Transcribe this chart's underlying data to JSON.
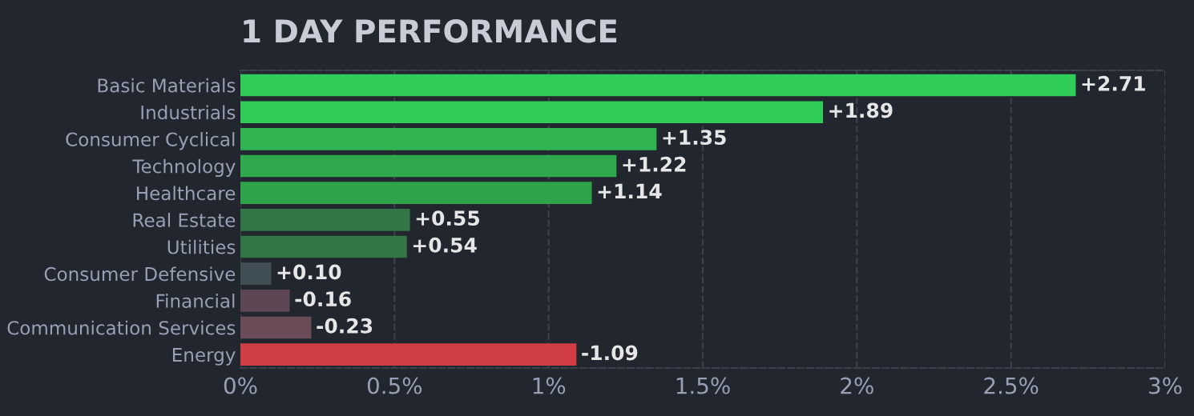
{
  "chart_data": {
    "type": "bar",
    "orientation": "horizontal",
    "title": "1 DAY PERFORMANCE",
    "categories": [
      "Basic Materials",
      "Industrials",
      "Consumer Cyclical",
      "Technology",
      "Healthcare",
      "Real Estate",
      "Utilities",
      "Consumer Defensive",
      "Financial",
      "Communication Services",
      "Energy"
    ],
    "values": [
      2.71,
      1.89,
      1.35,
      1.22,
      1.14,
      0.55,
      0.54,
      0.1,
      -0.16,
      -0.23,
      -1.09
    ],
    "base": [
      0,
      0,
      0,
      0,
      0,
      0,
      0,
      0,
      0.16,
      0.23,
      1.09
    ],
    "value_labels": [
      "+2.71",
      "+1.89",
      "+1.35",
      "+1.22",
      "+1.14",
      "+0.55",
      "+0.54",
      "+0.10",
      "-0.16",
      "-0.23",
      "-1.09"
    ],
    "colors": [
      "#30cc5a",
      "#30cc5a",
      "#2fb451",
      "#2fa94d",
      "#2fa34a",
      "#347548",
      "#347548",
      "#404e56",
      "#5e4754",
      "#6a4b58",
      "#d13d44"
    ],
    "xlim": [
      0,
      3
    ],
    "xticks": [
      {
        "value": 0,
        "label": "0%"
      },
      {
        "value": 0.5,
        "label": "0.5%"
      },
      {
        "value": 1,
        "label": "1%"
      },
      {
        "value": 1.5,
        "label": "1.5%"
      },
      {
        "value": 2,
        "label": "2%"
      },
      {
        "value": 2.5,
        "label": "2.5%"
      },
      {
        "value": 3,
        "label": "3%"
      }
    ],
    "grid": "x",
    "legend": false
  }
}
